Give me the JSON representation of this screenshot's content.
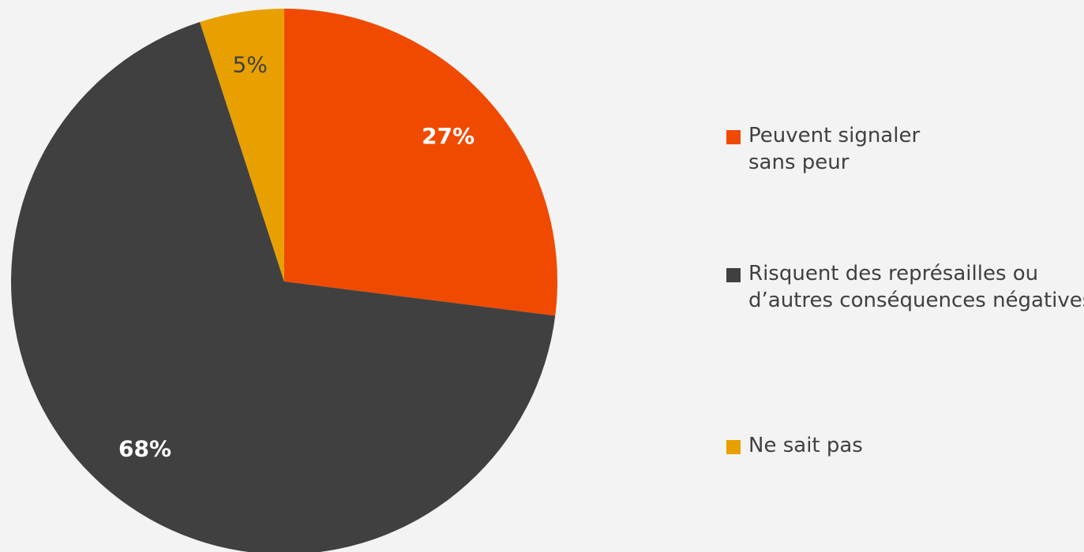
{
  "chart_data": {
    "type": "pie",
    "categories": [
      "Peuvent signaler sans peur",
      "Risquent des représailles ou d’autres conséquences négatives",
      "Ne sait pas"
    ],
    "values": [
      27,
      68,
      5
    ],
    "value_labels": [
      "27%",
      "68%",
      "5%"
    ],
    "colors": [
      "#f04a00",
      "#404040",
      "#e8a000"
    ],
    "legend": "right"
  }
}
